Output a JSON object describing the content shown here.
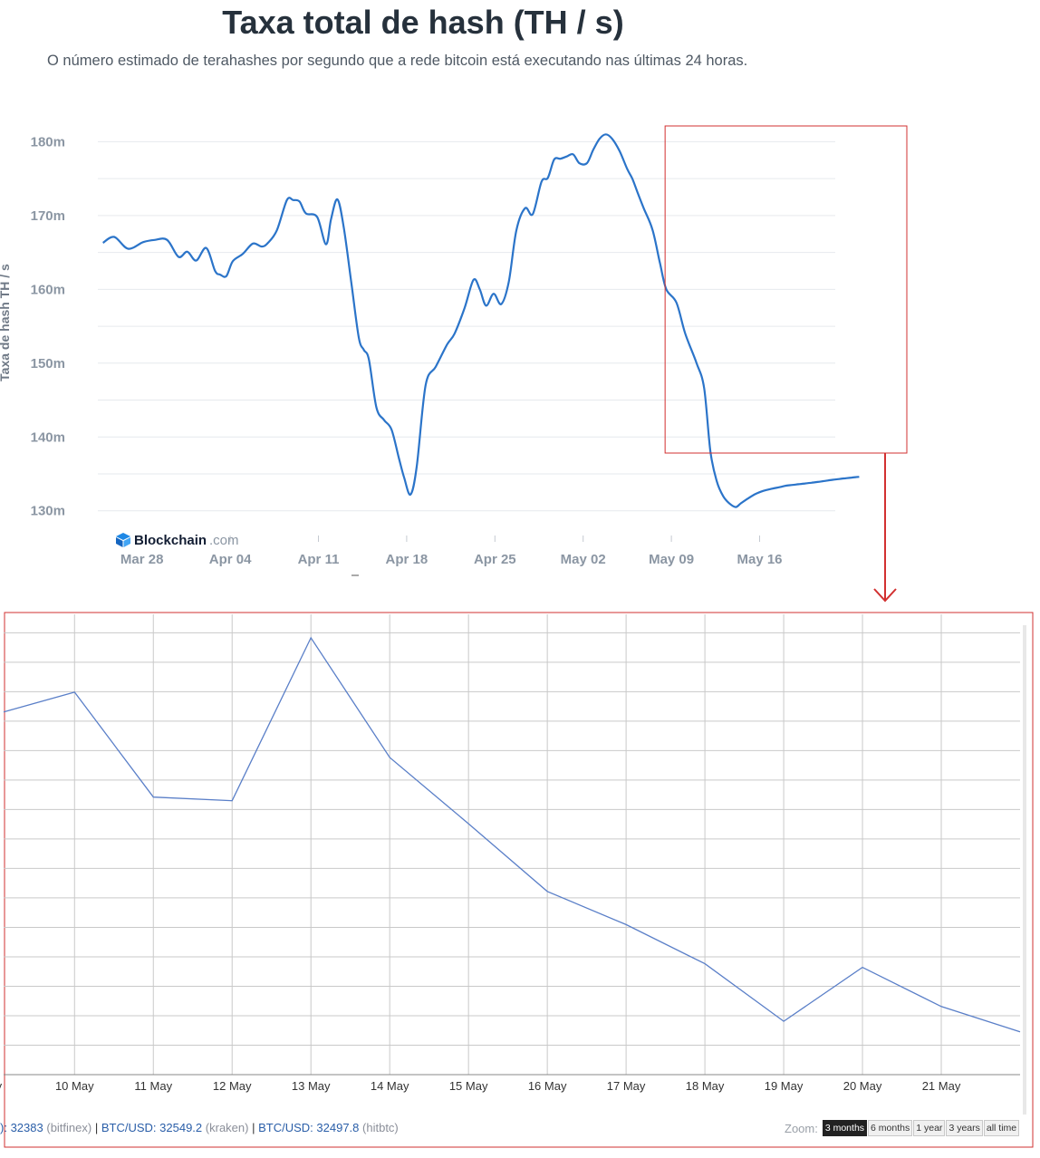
{
  "title": "Taxa total de hash (TH / s)",
  "subtitle": "O número estimado de terahashes por segundo que a rede bitcoin está executando nas últimas 24 horas.",
  "colors": {
    "line": "#2b74c9",
    "highlight": "#d23030",
    "detail_line": "#5a7fc8",
    "grid": "#e6e9ee"
  },
  "brand": {
    "name": "Blockchain",
    "suffix": ".com",
    "icon": "blockchain-cube-icon"
  },
  "chart_data": [
    {
      "type": "line",
      "ylabel": "Taxa de hash TH / s",
      "y_ticks": [
        {
          "value": 130,
          "label": "130m"
        },
        {
          "value": 140,
          "label": "140m"
        },
        {
          "value": 150,
          "label": "150m"
        },
        {
          "value": 160,
          "label": "160m"
        },
        {
          "value": 170,
          "label": "170m"
        },
        {
          "value": 180,
          "label": "180m"
        }
      ],
      "ylim": [
        128,
        183
      ],
      "xlim": [
        -3.5,
        55
      ],
      "x_ticks": [
        {
          "value": 0,
          "label": "Mar 28"
        },
        {
          "value": 7,
          "label": "Apr 04"
        },
        {
          "value": 14,
          "label": "Apr 11"
        },
        {
          "value": 21,
          "label": "Apr 18"
        },
        {
          "value": 28,
          "label": "Apr 25"
        },
        {
          "value": 35,
          "label": "May 02"
        },
        {
          "value": 42,
          "label": "May 09"
        },
        {
          "value": 49,
          "label": "May 16"
        }
      ],
      "grid": true,
      "series": [
        {
          "x": [
            -3.1,
            -2.2,
            -1.1,
            0.1,
            1.0,
            2.0,
            2.9,
            3.6,
            4.3,
            5.1,
            5.8,
            6.2,
            6.7,
            7.2,
            8.0,
            8.8,
            9.5,
            10.0,
            10.7,
            11.5,
            12.0,
            12.5,
            13.0,
            13.9,
            14.6,
            15.0,
            15.5,
            16.0,
            16.6,
            17.2,
            17.6,
            18.0,
            18.6,
            19.2,
            19.8,
            20.4,
            20.8,
            21.3,
            21.8,
            22.5,
            23.3,
            24.2,
            24.8,
            25.6,
            26.3,
            26.8,
            27.3,
            27.9,
            28.5,
            29.1,
            29.7,
            30.4,
            31.0,
            31.7,
            32.2,
            32.7,
            33.2,
            33.7,
            34.2,
            34.7,
            35.3,
            35.8,
            36.3,
            36.8,
            37.3,
            37.9,
            38.5,
            38.9,
            39.3,
            39.8,
            40.5,
            41.1,
            41.6,
            42.4,
            43.1,
            44.0,
            44.6,
            45.1,
            45.6,
            46.1,
            46.6,
            47.1,
            47.5,
            48.1,
            48.7,
            49.3,
            50.0,
            50.6,
            51.1,
            51.6,
            52.1,
            52.6,
            53.1,
            53.6,
            54.0,
            54.4,
            54.8,
            55.3,
            55.8,
            56.3,
            56.9
          ],
          "y": [
            166.3,
            167.1,
            165.5,
            166.4,
            166.7,
            166.7,
            164.4,
            165.1,
            163.9,
            165.6,
            162.5,
            162.0,
            161.8,
            163.8,
            164.8,
            166.2,
            165.8,
            166.3,
            168.0,
            172.1,
            172.1,
            171.9,
            170.3,
            169.8,
            166.1,
            169.5,
            172.2,
            168.5,
            161.0,
            153.5,
            151.8,
            150.5,
            144.0,
            142.3,
            141.0,
            137.0,
            134.5,
            132.2,
            136.0,
            147.0,
            149.5,
            152.5,
            154.0,
            157.5,
            161.3,
            160.0,
            157.8,
            159.4,
            158.0,
            161.0,
            168.0,
            171.0,
            170.2,
            174.6,
            175.1,
            177.6,
            177.7,
            178.0,
            178.3,
            177.1,
            177.1,
            178.9,
            180.4,
            181.0,
            180.4,
            178.7,
            176.3,
            175.0,
            173.2,
            171.0,
            168.1,
            163.5,
            160.0,
            158.2,
            154.0,
            150.0,
            146.6,
            138.0,
            134.0,
            132.0,
            131.0,
            130.5,
            131.0,
            131.7,
            132.3,
            132.7,
            133.0,
            133.2,
            133.4,
            133.5,
            133.6,
            133.7,
            133.8,
            133.9,
            134.0,
            134.1,
            134.2,
            134.3,
            134.4,
            134.5,
            134.6
          ]
        }
      ]
    },
    {
      "type": "line",
      "x_ticks": [
        {
          "value": 9,
          "label": "ay"
        },
        {
          "value": 10,
          "label": "10 May"
        },
        {
          "value": 11,
          "label": "11 May"
        },
        {
          "value": 12,
          "label": "12 May"
        },
        {
          "value": 13,
          "label": "13 May"
        },
        {
          "value": 14,
          "label": "14 May"
        },
        {
          "value": 15,
          "label": "15 May"
        },
        {
          "value": 16,
          "label": "16 May"
        },
        {
          "value": 17,
          "label": "17 May"
        },
        {
          "value": 18,
          "label": "18 May"
        },
        {
          "value": 19,
          "label": "19 May"
        },
        {
          "value": 20,
          "label": "20 May"
        },
        {
          "value": 21,
          "label": "21 May"
        }
      ],
      "xlim": [
        9.1,
        22.0
      ],
      "ylim": [
        0,
        100
      ],
      "grid": true,
      "series": [
        {
          "x": [
            9.1,
            10,
            11,
            12,
            13,
            14,
            15,
            16,
            17,
            18,
            19,
            20,
            21,
            22.0
          ],
          "y": [
            78.8,
            83.1,
            60.3,
            59.5,
            94.9,
            68.9,
            54.5,
            39.8,
            32.6,
            24.1,
            11.6,
            23.3,
            14.8,
            9.3
          ]
        }
      ]
    }
  ],
  "ticker": [
    {
      "label": "):",
      "value": "32383",
      "exchange": "(bitfinex)"
    },
    {
      "label": "BTC/USD:",
      "value": "32549.2",
      "exchange": "(kraken)"
    },
    {
      "label": "BTC/USD:",
      "value": "32497.8",
      "exchange": "(hitbtc)"
    }
  ],
  "zoom": {
    "label": "Zoom:",
    "options": [
      "3 months",
      "6 months",
      "1 year",
      "3 years",
      "all time"
    ],
    "selected": "3 months"
  }
}
